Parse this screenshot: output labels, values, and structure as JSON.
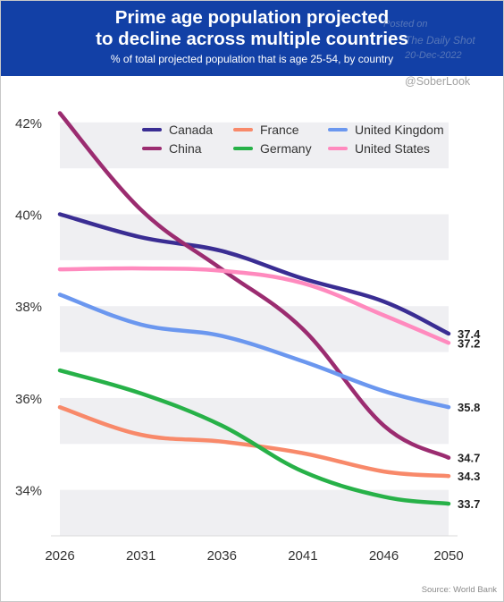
{
  "header": {
    "title_line1": "Prime age population projected",
    "title_line2": "to decline across multiple countries",
    "subtitle": "% of total projected population that is age 25-54, by country",
    "bg_color": "#1240a6"
  },
  "watermark": {
    "line1": "Posted on",
    "line2": "The Daily Shot",
    "line3": "20-Dec-2022",
    "handle": "@SoberLook"
  },
  "source": "Source: World Bank",
  "chart_data": {
    "type": "line",
    "x": [
      2026,
      2031,
      2036,
      2041,
      2046,
      2050
    ],
    "x_tick_labels": [
      "2026",
      "2031",
      "2036",
      "2041",
      "2046",
      "2050"
    ],
    "ylim": [
      33.0,
      42.6
    ],
    "y_ticks": [
      34,
      36,
      38,
      40,
      42
    ],
    "y_tick_labels": [
      "34%",
      "36%",
      "38%",
      "40%",
      "42%"
    ],
    "grid": "horizontal bands",
    "legend_position": "top",
    "series": [
      {
        "name": "Canada",
        "color": "#3a2d93",
        "values": [
          40.0,
          39.5,
          39.2,
          38.6,
          38.1,
          37.4
        ],
        "end_label": "37.4"
      },
      {
        "name": "China",
        "color": "#9b2c70",
        "values": [
          42.2,
          40.1,
          38.8,
          37.5,
          35.4,
          34.7
        ],
        "end_label": "34.7"
      },
      {
        "name": "France",
        "color": "#f8896a",
        "values": [
          35.8,
          35.2,
          35.05,
          34.8,
          34.4,
          34.3
        ],
        "end_label": "34.3"
      },
      {
        "name": "Germany",
        "color": "#27b148",
        "values": [
          36.6,
          36.1,
          35.4,
          34.4,
          33.85,
          33.7
        ],
        "end_label": "33.7"
      },
      {
        "name": "United Kingdom",
        "color": "#6b97ef",
        "values": [
          38.25,
          37.6,
          37.35,
          36.8,
          36.15,
          35.8
        ],
        "end_label": "35.8"
      },
      {
        "name": "United States",
        "color": "#ff8abe",
        "values": [
          38.8,
          38.82,
          38.77,
          38.5,
          37.8,
          37.2
        ],
        "end_label": "37.2"
      }
    ]
  }
}
